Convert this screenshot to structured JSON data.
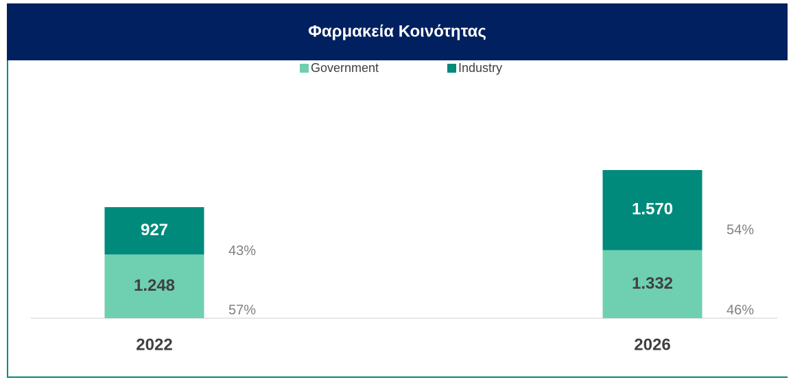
{
  "chart_data": {
    "type": "stacked_bar",
    "title": "Φαρμακεία Κοινότητας",
    "categories": [
      "2022",
      "2026"
    ],
    "series": [
      {
        "name": "Government",
        "color": "#6fcfb1",
        "values": [
          1248,
          1332
        ],
        "value_labels": [
          "1.248",
          "1.332"
        ],
        "shares": [
          57,
          46
        ],
        "share_labels": [
          "57%",
          "46%"
        ]
      },
      {
        "name": "Industry",
        "color": "#008a7b",
        "values": [
          927,
          1570
        ],
        "value_labels": [
          "927",
          "1.570"
        ],
        "shares": [
          43,
          54
        ],
        "share_labels": [
          "43%",
          "54%"
        ]
      }
    ],
    "ylim": [
      0,
      4500
    ],
    "legend": "top"
  }
}
